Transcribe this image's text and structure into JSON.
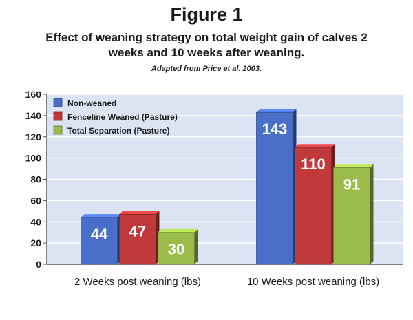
{
  "header": {
    "title": "Figure 1",
    "subtitle": "Effect of weaning strategy on total weight gain of calves 2 weeks and 10 weeks after weaning.",
    "source": "Adapted from Price et al. 2003."
  },
  "chart_data": {
    "type": "bar",
    "title": "",
    "xlabel": "",
    "ylabel": "",
    "categories": [
      "2 Weeks post weaning (lbs)",
      "10 Weeks post weaning (lbs)"
    ],
    "series": [
      {
        "name": "Non-weaned",
        "values": [
          44,
          143
        ],
        "color": "#4a6fc8"
      },
      {
        "name": "Fenceline Weaned (Pasture)",
        "values": [
          47,
          110
        ],
        "color": "#c0393b"
      },
      {
        "name": "Total Separation (Pasture)",
        "values": [
          30,
          91
        ],
        "color": "#9bbb4a"
      }
    ],
    "ylim": [
      0,
      160
    ],
    "yticks": [
      0,
      20,
      40,
      60,
      80,
      100,
      120,
      140,
      160
    ],
    "grid": true,
    "legend_position": "top-left",
    "data_labels": true,
    "colors": {
      "plot_background": "#dce4f4",
      "grid": "#ffffff",
      "axis": "#555555"
    }
  }
}
